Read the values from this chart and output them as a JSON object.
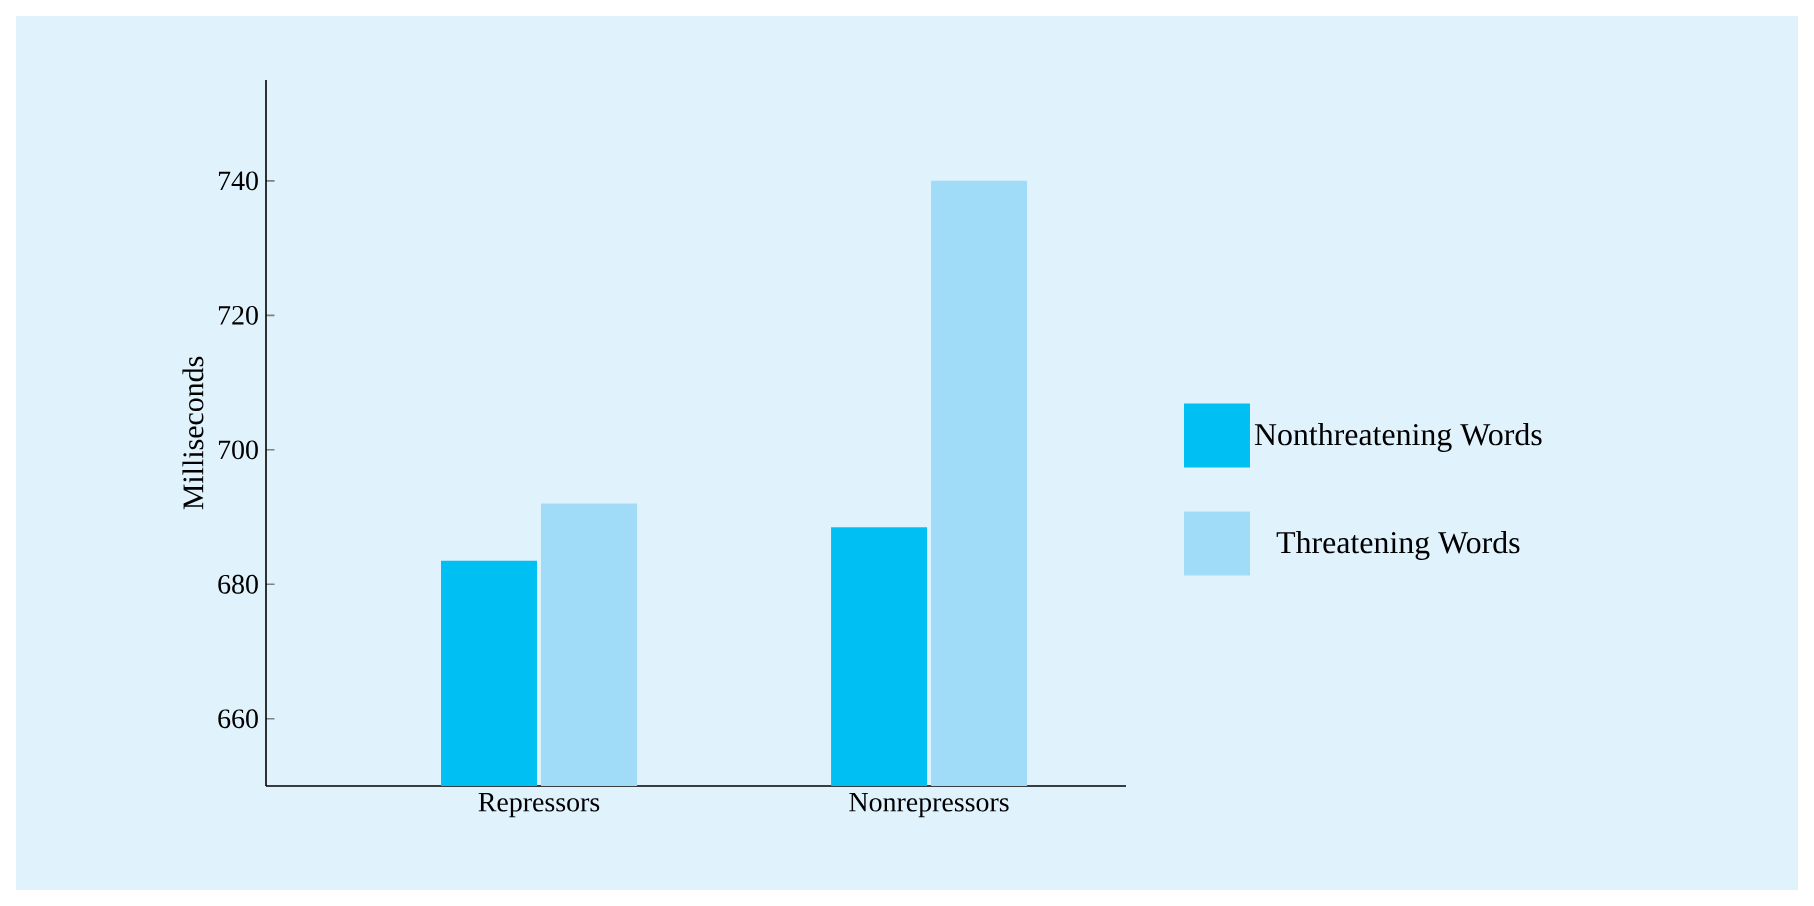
{
  "chart_data": {
    "type": "bar",
    "ylabel": "Milliseconds",
    "categories": [
      "Repressors",
      "Nonrepressors"
    ],
    "series": [
      {
        "name": "Nonthreatening Words",
        "color": "#00c0f3",
        "values": [
          683.5,
          688.5
        ]
      },
      {
        "name": "Threatening Words",
        "color": "#a0dcf7",
        "values": [
          692,
          740
        ]
      }
    ],
    "ylim": [
      650,
      755
    ],
    "yticks": [
      660,
      680,
      700,
      720,
      740
    ],
    "legend": "right"
  }
}
